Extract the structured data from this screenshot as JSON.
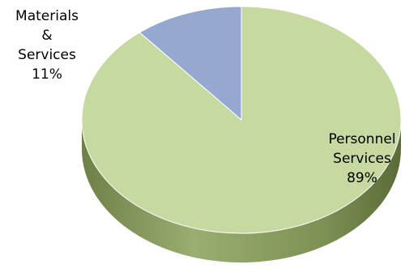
{
  "chart_data": {
    "type": "pie",
    "title": "",
    "slices": [
      {
        "label_lines": [
          "Materials",
          "&",
          "Services"
        ],
        "value": 11,
        "value_label": "11%",
        "color": "#94a8d0",
        "side_color": "#6b7ea6"
      },
      {
        "label_lines": [
          "Personnel",
          "Services"
        ],
        "value": 89,
        "value_label": "89%",
        "color": "#c5d9a0",
        "side_color": "#8a9e62"
      }
    ],
    "start_angle_deg": 0,
    "direction": "counterclockwise-from-top",
    "style": "3d",
    "legend": "none"
  }
}
